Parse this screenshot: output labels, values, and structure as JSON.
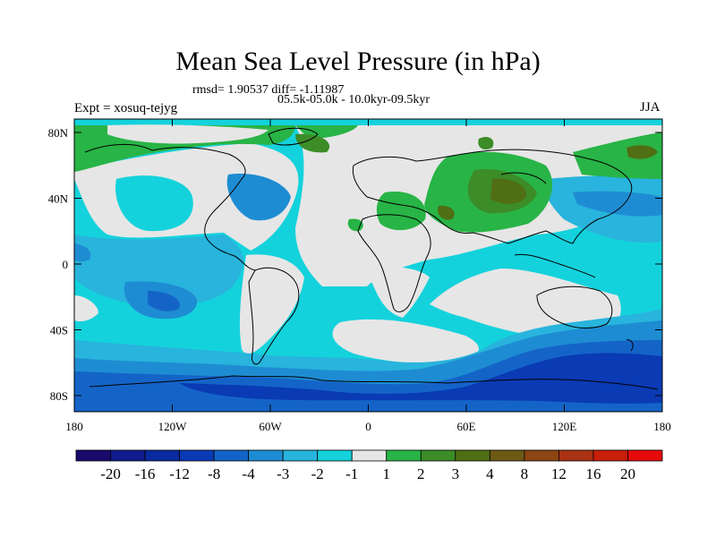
{
  "title": "Mean Sea Level Pressure (in hPa)",
  "stats_line": "rmsd= 1.90537 diff= -1.11987",
  "subtitle": "05.5k-05.0k - 10.0kyr-09.5kyr",
  "experiment": "Expt = xosuq-tejyg",
  "season": "JJA",
  "axes": {
    "y_ticks": [
      "80N",
      "40N",
      "0",
      "40S",
      "80S"
    ],
    "x_ticks": [
      "180",
      "120W",
      "60W",
      "0",
      "60E",
      "120E",
      "180"
    ]
  },
  "colorbar": {
    "labels": [
      "-20",
      "-16",
      "-12",
      "-8",
      "-4",
      "-3",
      "-2",
      "-1",
      "1",
      "2",
      "3",
      "4",
      "8",
      "12",
      "16",
      "20"
    ],
    "colors": [
      "#1a0a6e",
      "#101a8a",
      "#0a2aa0",
      "#0a3ab4",
      "#1464c8",
      "#1e8cd2",
      "#28b4dc",
      "#14d2dc",
      "#e6e6e6",
      "#28b446",
      "#3c8c28",
      "#506e14",
      "#6e5a14",
      "#8c4614",
      "#aa3214",
      "#c81e0a",
      "#e60a0a"
    ]
  },
  "colors": {
    "background": "#ffffff",
    "land_line": "#000000",
    "neutral": "#e6e6e6"
  }
}
